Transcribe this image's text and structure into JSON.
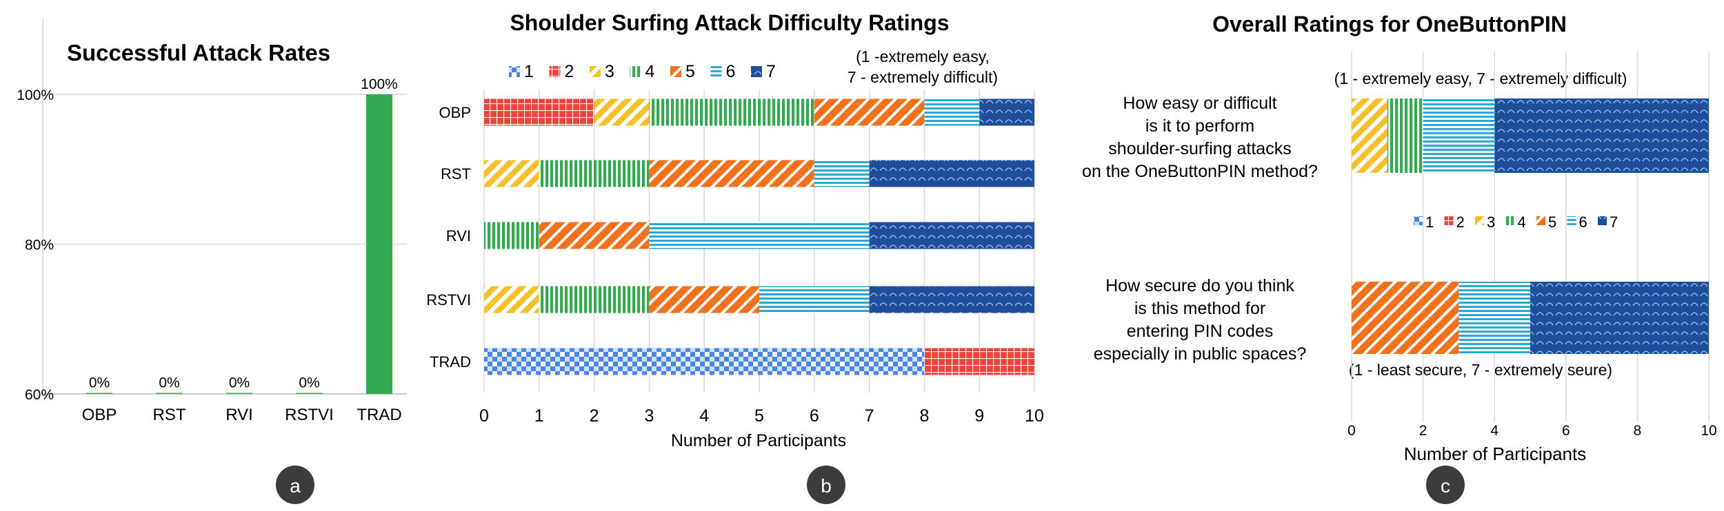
{
  "chart_data": [
    {
      "type": "bar",
      "title": "Successful Attack Rates",
      "categories": [
        "OBP",
        "RST",
        "RVI",
        "RSTVI",
        "TRAD"
      ],
      "values": [
        0,
        0,
        0,
        0,
        100
      ],
      "data_labels": [
        "0%",
        "0%",
        "0%",
        "0%",
        "100%"
      ],
      "y_ticks": [
        "60%",
        "80%",
        "100%"
      ],
      "ylim": [
        60,
        100
      ],
      "bar_color": "#34a853",
      "grid": true,
      "badge": "a"
    },
    {
      "type": "bar",
      "orientation": "horizontal",
      "stacked": true,
      "title": "Shoulder Surfing Attack Difficulty Ratings",
      "scale_note": [
        "(1 -extremely easy,",
        "7 - extremely difficult)"
      ],
      "xlabel": "Number of Participants",
      "categories": [
        "OBP",
        "RST",
        "RVI",
        "RSTVI",
        "TRAD"
      ],
      "x_ticks": [
        "0",
        "1",
        "2",
        "3",
        "4",
        "5",
        "6",
        "7",
        "8",
        "9",
        "10"
      ],
      "xlim": [
        0,
        10
      ],
      "grid": true,
      "legend_position": "top",
      "series": [
        {
          "name": "1",
          "values": [
            0,
            0,
            0,
            0,
            8
          ]
        },
        {
          "name": "2",
          "values": [
            2,
            0,
            0,
            0,
            2
          ]
        },
        {
          "name": "3",
          "values": [
            1,
            1,
            0,
            1,
            0
          ]
        },
        {
          "name": "4",
          "values": [
            3,
            2,
            1,
            2,
            0
          ]
        },
        {
          "name": "5",
          "values": [
            2,
            3,
            2,
            2,
            0
          ]
        },
        {
          "name": "6",
          "values": [
            1,
            1,
            4,
            2,
            0
          ]
        },
        {
          "name": "7",
          "values": [
            1,
            3,
            3,
            3,
            0
          ]
        }
      ],
      "badge": "b"
    },
    {
      "type": "bar",
      "orientation": "horizontal",
      "stacked": true,
      "title": "Overall Ratings for OneButtonPIN",
      "xlabel": "Number of Participants",
      "questions": [
        {
          "lines": [
            "How easy or difficult",
            "is it to perform",
            "shoulder-surfing attacks",
            "on the OneButtonPIN method?"
          ],
          "scale_note": "(1 - extremely easy, 7 - extremely difficult)"
        },
        {
          "lines": [
            "How secure do you think",
            "is this method for",
            "entering PIN codes",
            "especially in public spaces?"
          ],
          "scale_note": "(1 - least secure, 7 - extremely seure)"
        }
      ],
      "x_ticks": [
        "0",
        "2",
        "4",
        "6",
        "8",
        "10"
      ],
      "xlim": [
        0,
        10
      ],
      "grid": true,
      "legend_position": "center",
      "series": [
        {
          "name": "1",
          "values": [
            0,
            0
          ]
        },
        {
          "name": "2",
          "values": [
            0,
            0
          ]
        },
        {
          "name": "3",
          "values": [
            1,
            0
          ]
        },
        {
          "name": "4",
          "values": [
            1,
            0
          ]
        },
        {
          "name": "5",
          "values": [
            0,
            3
          ]
        },
        {
          "name": "6",
          "values": [
            2,
            2
          ]
        },
        {
          "name": "7",
          "values": [
            6,
            5
          ]
        }
      ],
      "badge": "c"
    }
  ],
  "rating_colors": {
    "1": "#4a86e8",
    "2": "#e8453c",
    "3": "#f6c02a",
    "4": "#34a853",
    "5": "#f2711c",
    "6": "#29a9d6",
    "7": "#1f4f9c"
  },
  "badge_color": "#3c3c3c"
}
